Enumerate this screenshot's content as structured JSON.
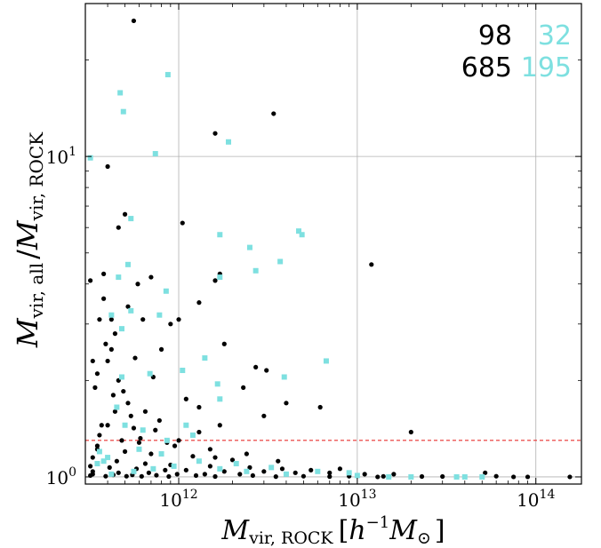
{
  "chart_data": {
    "type": "scatter",
    "x_scale": "log",
    "y_scale": "log",
    "xlim": [
      300000000000.0,
      180000000000000.0
    ],
    "ylim": [
      0.95,
      30
    ],
    "grid": true,
    "xlabel": {
      "main": "M",
      "sub": "vir, ROCK",
      "units_open": "[",
      "units_h": "h",
      "units_exp": "−1",
      "units_msun": "M",
      "units_sun": "⊙",
      "units_close": "]"
    },
    "ylabel": {
      "m1": "M",
      "s1": "vir, all",
      "slash": "/",
      "m2": "M",
      "s2": "vir, ROCK"
    },
    "x_ticks": [
      {
        "value": 1000000000000.0,
        "base": "10",
        "exp": "12"
      },
      {
        "value": 10000000000000.0,
        "base": "10",
        "exp": "13"
      },
      {
        "value": 100000000000000.0,
        "base": "10",
        "exp": "14"
      }
    ],
    "y_ticks": [
      {
        "value": 1,
        "base": "10",
        "exp": "0"
      },
      {
        "value": 10,
        "base": "10",
        "exp": "1"
      }
    ],
    "threshold_line": {
      "y": 1.3,
      "color": "#e8312e",
      "style": "dashed"
    },
    "counts": {
      "black_top": "98",
      "cyan_top": "32",
      "black_bottom": "685",
      "cyan_bottom": "195"
    },
    "series": [
      {
        "color": "#000000",
        "marker": "circle",
        "points": [
          [
            560000000000.0,
            26.5
          ],
          [
            3400000000000.0,
            13.6
          ],
          [
            1600000000000.0,
            11.8
          ],
          [
            400000000000.0,
            9.3
          ],
          [
            1050000000000.0,
            6.2
          ],
          [
            500000000000.0,
            6.6
          ],
          [
            460000000000.0,
            6.0
          ],
          [
            12000000000000.0,
            4.6
          ],
          [
            320000000000.0,
            4.1
          ],
          [
            380000000000.0,
            4.3
          ],
          [
            590000000000.0,
            4.0
          ],
          [
            700000000000.0,
            4.2
          ],
          [
            1700000000000.0,
            4.3
          ],
          [
            1600000000000.0,
            4.1
          ],
          [
            1300000000000.0,
            3.5
          ],
          [
            520000000000.0,
            3.4
          ],
          [
            420000000000.0,
            3.1
          ],
          [
            360000000000.0,
            3.1
          ],
          [
            630000000000.0,
            3.1
          ],
          [
            900000000000.0,
            3.0
          ],
          [
            440000000000.0,
            2.8
          ],
          [
            390000000000.0,
            2.6
          ],
          [
            400000000000.0,
            2.3
          ],
          [
            350000000000.0,
            2.1
          ],
          [
            460000000000.0,
            2.0
          ],
          [
            800000000000.0,
            2.5
          ],
          [
            1800000000000.0,
            2.6
          ],
          [
            2700000000000.0,
            2.2
          ],
          [
            3100000000000.0,
            2.15
          ],
          [
            2300000000000.0,
            1.9
          ],
          [
            1100000000000.0,
            1.75
          ],
          [
            4000000000000.0,
            1.7
          ],
          [
            6200000000000.0,
            1.65
          ],
          [
            3000000000000.0,
            1.55
          ],
          [
            20000000000000.0,
            1.38
          ],
          [
            340000000000.0,
            1.9
          ],
          [
            430000000000.0,
            1.8
          ],
          [
            520000000000.0,
            1.7
          ],
          [
            650000000000.0,
            1.6
          ],
          [
            780000000000.0,
            1.5
          ],
          [
            400000000000.0,
            1.45
          ],
          [
            560000000000.0,
            1.42
          ],
          [
            1300000000000.0,
            1.38
          ],
          [
            1700000000000.0,
            1.45
          ],
          [
            360000000000.0,
            1.35
          ],
          [
            480000000000.0,
            1.3
          ],
          [
            600000000000.0,
            1.28
          ],
          [
            950000000000.0,
            1.25
          ],
          [
            350000000000.0,
            1.22
          ],
          [
            500000000000.0,
            1.2
          ],
          [
            700000000000.0,
            1.18
          ],
          [
            1200000000000.0,
            1.16
          ],
          [
            2000000000000.0,
            1.13
          ],
          [
            330000000000.0,
            1.15
          ],
          [
            450000000000.0,
            1.12
          ],
          [
            650000000000.0,
            1.1
          ],
          [
            900000000000.0,
            1.09
          ],
          [
            1500000000000.0,
            1.08
          ],
          [
            2500000000000.0,
            1.07
          ],
          [
            3800000000000.0,
            1.06
          ],
          [
            5500000000000.0,
            1.05
          ],
          [
            8000000000000.0,
            1.06
          ],
          [
            320000000000.0,
            1.08
          ],
          [
            410000000000.0,
            1.07
          ],
          [
            580000000000.0,
            1.06
          ],
          [
            840000000000.0,
            1.05
          ],
          [
            1100000000000.0,
            1.05
          ],
          [
            1800000000000.0,
            1.04
          ],
          [
            3000000000000.0,
            1.04
          ],
          [
            4500000000000.0,
            1.03
          ],
          [
            7000000000000.0,
            1.03
          ],
          [
            11000000000000.0,
            1.02
          ],
          [
            16000000000000.0,
            1.02
          ],
          [
            330000000000.0,
            1.04
          ],
          [
            460000000000.0,
            1.03
          ],
          [
            680000000000.0,
            1.03
          ],
          [
            980000000000.0,
            1.02
          ],
          [
            1400000000000.0,
            1.02
          ],
          [
            2200000000000.0,
            1.02
          ],
          [
            330000000000.0,
            1.02
          ],
          [
            430000000000.0,
            1.015
          ],
          [
            550000000000.0,
            1.015
          ],
          [
            750000000000.0,
            1.012
          ],
          [
            1250000000000.0,
            1.01
          ],
          [
            2600000000000.0,
            1.01
          ],
          [
            5000000000000.0,
            1.005
          ],
          [
            9000000000000.0,
            1.005
          ],
          [
            14000000000000.0,
            1.004
          ],
          [
            320000000000.0,
            1.01
          ],
          [
            390000000000.0,
            1.005
          ],
          [
            510000000000.0,
            1.005
          ],
          [
            620000000000.0,
            1.004
          ],
          [
            880000000000.0,
            1.003
          ],
          [
            1600000000000.0,
            1.003
          ],
          [
            3500000000000.0,
            1.002
          ],
          [
            7000000000000.0,
            1.002
          ],
          [
            23000000000000.0,
            1.003
          ],
          [
            30000000000000.0,
            1.003
          ],
          [
            52000000000000.0,
            1.03
          ],
          [
            75000000000000.0,
            1.0
          ],
          [
            90000000000000.0,
            1.0
          ],
          [
            155000000000000.0,
            1.0
          ],
          [
            40000000000000.0,
            1.0
          ],
          [
            60000000000000.0,
            1.005
          ],
          [
            20000000000000.0,
            1.0
          ],
          [
            13000000000000.0,
            1.0
          ],
          [
            350000000000.0,
            1.25
          ],
          [
            370000000000.0,
            1.45
          ],
          [
            440000000000.0,
            1.6
          ],
          [
            540000000000.0,
            1.55
          ],
          [
            490000000000.0,
            1.85
          ],
          [
            610000000000.0,
            1.32
          ],
          [
            740000000000.0,
            1.4
          ],
          [
            860000000000.0,
            1.28
          ],
          [
            1000000000000.0,
            1.3
          ],
          [
            1500000000000.0,
            1.22
          ],
          [
            2400000000000.0,
            1.18
          ],
          [
            3600000000000.0,
            1.12
          ],
          [
            1600000000000.0,
            1.15
          ],
          [
            1300000000000.0,
            1.65
          ],
          [
            380000000000.0,
            3.6
          ],
          [
            330000000000.0,
            2.3
          ],
          [
            420000000000.0,
            2.5
          ],
          [
            570000000000.0,
            2.35
          ],
          [
            720000000000.0,
            2.05
          ],
          [
            1000000000000.0,
            3.1
          ]
        ]
      },
      {
        "color": "#7ee0e0",
        "marker": "square",
        "points": [
          [
            870000000000.0,
            18.0
          ],
          [
            470000000000.0,
            15.8
          ],
          [
            490000000000.0,
            13.8
          ],
          [
            1900000000000.0,
            11.1
          ],
          [
            740000000000.0,
            10.2
          ],
          [
            320000000000.0,
            9.9
          ],
          [
            540000000000.0,
            6.4
          ],
          [
            1700000000000.0,
            5.7
          ],
          [
            2500000000000.0,
            5.2
          ],
          [
            4700000000000.0,
            5.85
          ],
          [
            4900000000000.0,
            5.7
          ],
          [
            3700000000000.0,
            4.7
          ],
          [
            2700000000000.0,
            4.4
          ],
          [
            1700000000000.0,
            4.2
          ],
          [
            520000000000.0,
            4.6
          ],
          [
            460000000000.0,
            4.2
          ],
          [
            850000000000.0,
            3.8
          ],
          [
            540000000000.0,
            3.3
          ],
          [
            780000000000.0,
            3.2
          ],
          [
            420000000000.0,
            3.2
          ],
          [
            480000000000.0,
            2.9
          ],
          [
            6700000000000.0,
            2.3
          ],
          [
            3900000000000.0,
            2.05
          ],
          [
            1400000000000.0,
            2.35
          ],
          [
            1050000000000.0,
            2.15
          ],
          [
            1650000000000.0,
            1.95
          ],
          [
            690000000000.0,
            2.1
          ],
          [
            480000000000.0,
            2.05
          ],
          [
            1700000000000.0,
            1.75
          ],
          [
            450000000000.0,
            1.65
          ],
          [
            1100000000000.0,
            1.45
          ],
          [
            630000000000.0,
            1.4
          ],
          [
            360000000000.0,
            1.2
          ],
          [
            800000000000.0,
            1.18
          ],
          [
            1300000000000.0,
            1.12
          ],
          [
            2100000000000.0,
            1.1
          ],
          [
            3300000000000.0,
            1.07
          ],
          [
            20000000000000.0,
            1.0
          ],
          [
            36000000000000.0,
            1.0
          ],
          [
            50000000000000.0,
            1.0
          ],
          [
            40000000000000.0,
            1.0
          ],
          [
            9000000000000.0,
            1.03
          ],
          [
            420000000000.0,
            1.02
          ],
          [
            560000000000.0,
            1.04
          ],
          [
            720000000000.0,
            1.06
          ],
          [
            940000000000.0,
            1.08
          ],
          [
            1700000000000.0,
            1.06
          ],
          [
            2400000000000.0,
            1.04
          ],
          [
            4000000000000.0,
            1.02
          ],
          [
            6000000000000.0,
            1.04
          ],
          [
            10000000000000.0,
            1.01
          ],
          [
            15000000000000.0,
            1.0
          ],
          [
            350000000000.0,
            1.1
          ],
          [
            400000000000.0,
            1.15
          ],
          [
            600000000000.0,
            1.22
          ],
          [
            860000000000.0,
            1.3
          ],
          [
            1200000000000.0,
            1.35
          ],
          [
            500000000000.0,
            1.45
          ],
          [
            380000000000.0,
            1.12
          ]
        ]
      }
    ]
  }
}
